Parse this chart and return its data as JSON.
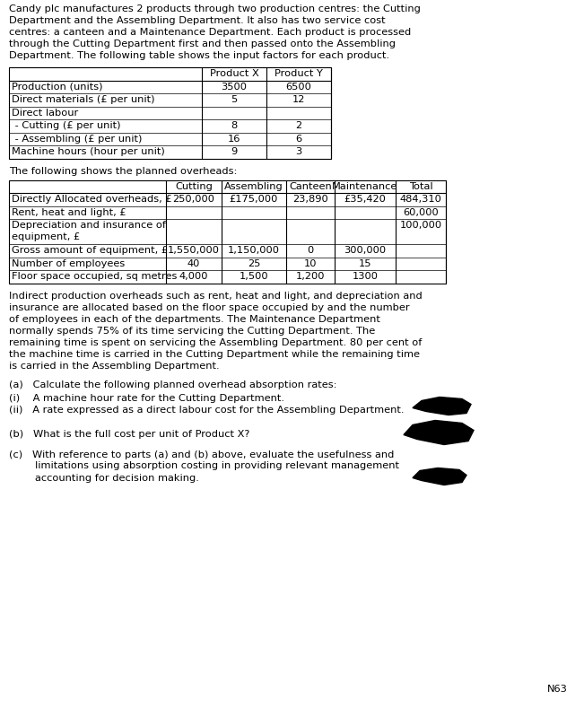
{
  "intro_text": "Candy plc manufactures 2 products through two production centres: the Cutting\nDepartment and the Assembling Department. It also has two service cost\ncentres: a canteen and a Maintenance Department. Each product is processed\nthrough the Cutting Department first and then passed onto the Assembling\nDepartment. The following table shows the input factors for each product.",
  "table1_headers": [
    "",
    "Product X",
    "Product Y"
  ],
  "table1_rows": [
    [
      "Production (units)",
      "3500",
      "6500"
    ],
    [
      "Direct materials (£ per unit)",
      "5",
      "12"
    ],
    [
      "Direct labour",
      "",
      ""
    ],
    [
      " - Cutting (£ per unit)",
      "8",
      "2"
    ],
    [
      " - Assembling (£ per unit)",
      "16",
      "6"
    ],
    [
      "Machine hours (hour per unit)",
      "9",
      "3"
    ]
  ],
  "table2_intro": "The following shows the planned overheads:",
  "table2_headers": [
    "",
    "Cutting",
    "Assembling",
    "Canteen",
    "Maintenance",
    "Total"
  ],
  "table2_rows": [
    [
      "Directly Allocated overheads, £",
      "250,000",
      "£175,000",
      "23,890",
      "£35,420",
      "484,310"
    ],
    [
      "Rent, heat and light, £",
      "",
      "",
      "",
      "",
      "60,000"
    ],
    [
      "Depreciation and insurance of\nequipment, £",
      "",
      "",
      "",
      "",
      "100,000"
    ],
    [
      "Gross amount of equipment, £",
      "1,550,000",
      "1,150,000",
      "0",
      "300,000",
      ""
    ],
    [
      "Number of employees",
      "40",
      "25",
      "10",
      "15",
      ""
    ],
    [
      "Floor space occupied, sq metres",
      "4,000",
      "1,500",
      "1,200",
      "1300",
      ""
    ]
  ],
  "para2": "Indirect production overheads such as rent, heat and light, and depreciation and\ninsurance are allocated based on the floor space occupied by and the number\nof employees in each of the departments. The Maintenance Department\nnormally spends 75% of its time servicing the Cutting Department. The\nremaining time is spent on servicing the Assembling Department. 80 per cent of\nthe machine time is carried in the Cutting Department while the remaining time\nis carried in the Assembling Department.",
  "q_a": "(a)   Calculate the following planned overhead absorption rates:",
  "q_i": "(i)    A machine hour rate for the Cutting Department.",
  "q_ii": "(ii)   A rate expressed as a direct labour cost for the Assembling Department.",
  "q_b": "(b)   What is the full cost per unit of Product X?",
  "q_c1": "(c)   With reference to parts (a) and (b) above, evaluate the usefulness and",
  "q_c2": "        limitations using absorption costing in providing relevant management",
  "q_c3": "        accounting for decision making.",
  "footnote": "N63",
  "bg_color": "#ffffff",
  "text_color": "#000000",
  "line_color": "#000000",
  "font_size": 8.2
}
